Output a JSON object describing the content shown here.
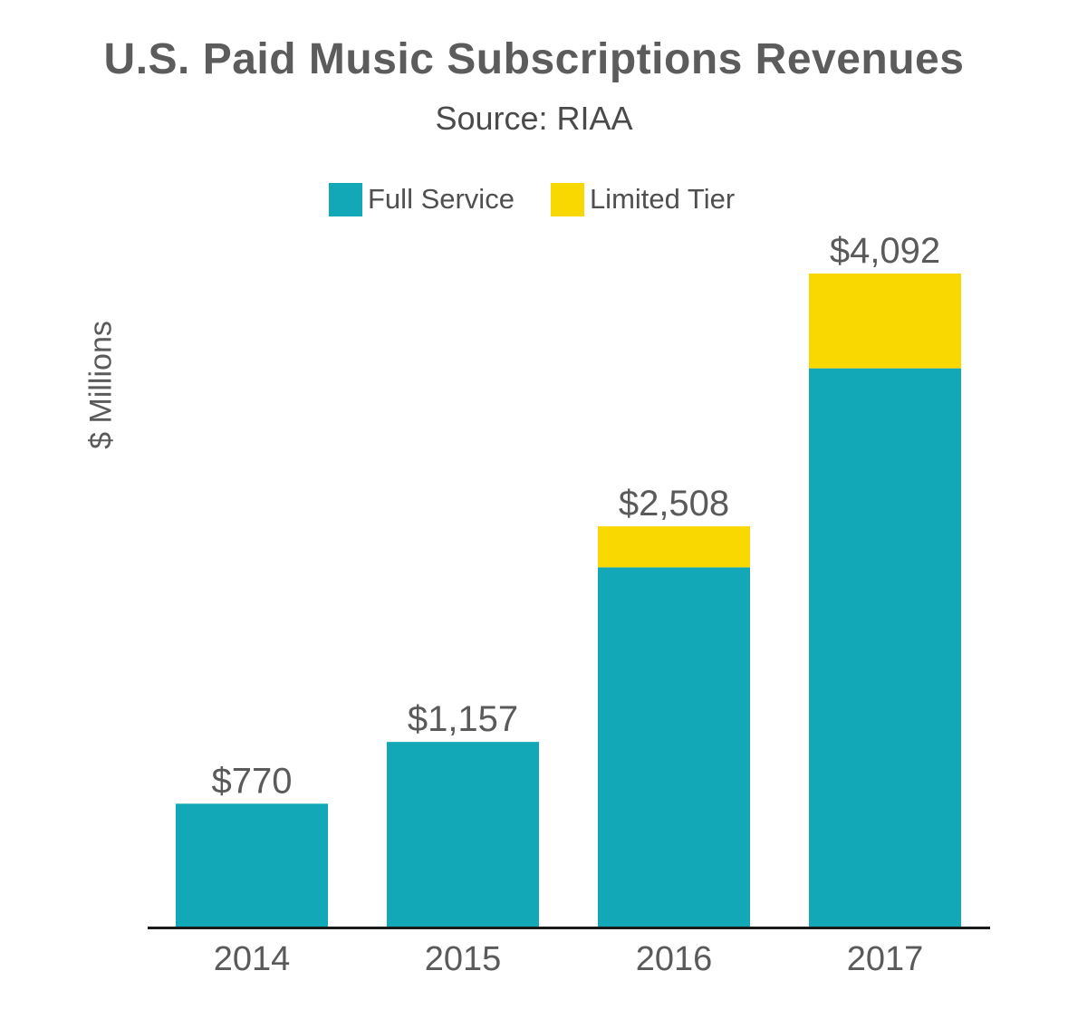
{
  "chart_data": {
    "type": "bar",
    "stacked": true,
    "title": "U.S. Paid Music Subscriptions Revenues",
    "subtitle": "Source: RIAA",
    "ylabel": "$ Millions",
    "xlabel": "",
    "categories": [
      "2014",
      "2015",
      "2016",
      "2017"
    ],
    "series": [
      {
        "name": "Full Service",
        "color": "#12a8b8",
        "values": [
          770,
          1157,
          2251,
          3498
        ]
      },
      {
        "name": "Limited Tier",
        "color": "#f9d700",
        "values": [
          0,
          0,
          257,
          594
        ]
      }
    ],
    "totals": [
      770,
      1157,
      2508,
      4092
    ],
    "total_labels": [
      "$770",
      "$1,157",
      "$2,508",
      "$4,092"
    ],
    "ylim": [
      0,
      4092
    ],
    "grid": false,
    "legend_position": "top"
  },
  "colors": {
    "axis": "#1a1a1a",
    "text": "#5a5a5a"
  }
}
